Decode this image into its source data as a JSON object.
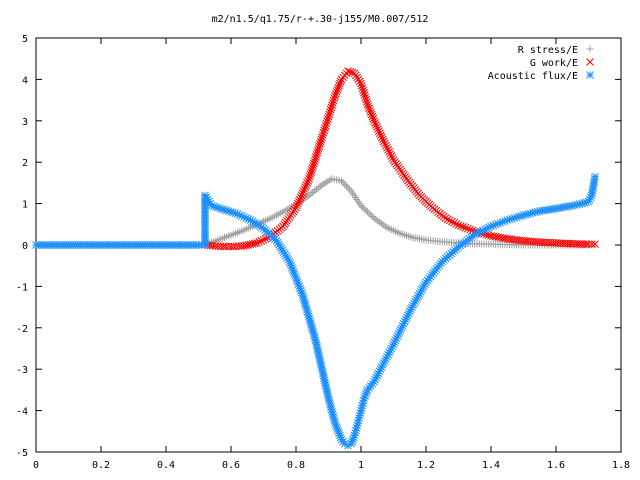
{
  "chart_data": {
    "type": "scatter",
    "title": "m2/n1.5/q1.75/r-+.30-j155/M0.007/512",
    "xlabel": "",
    "ylabel": "",
    "xlim": [
      0,
      1.8
    ],
    "ylim": [
      -5,
      5
    ],
    "xticks": [
      "0",
      "0.2",
      "0.4",
      "0.6",
      "0.8",
      "1",
      "1.2",
      "1.4",
      "1.6",
      "1.8"
    ],
    "yticks": [
      "5",
      "4",
      "3",
      "2",
      "1",
      "0",
      "-1",
      "-2",
      "-3",
      "-4",
      "-5"
    ],
    "legend_position": "top-right",
    "grid": false,
    "series": [
      {
        "name": "R stress/E",
        "marker": "plus",
        "color": "#a0a0a0",
        "x": [
          0.52,
          0.56,
          0.6,
          0.64,
          0.68,
          0.72,
          0.76,
          0.8,
          0.84,
          0.88,
          0.91,
          0.94,
          0.97,
          1.0,
          1.04,
          1.08,
          1.12,
          1.16,
          1.2,
          1.25,
          1.3,
          1.35,
          1.4,
          1.45,
          1.5,
          1.55,
          1.6,
          1.65,
          1.7,
          1.72
        ],
        "y": [
          0.0,
          0.12,
          0.24,
          0.36,
          0.5,
          0.64,
          0.8,
          0.98,
          1.2,
          1.45,
          1.6,
          1.55,
          1.3,
          0.95,
          0.65,
          0.42,
          0.28,
          0.18,
          0.12,
          0.08,
          0.05,
          0.03,
          0.02,
          0.01,
          0.0,
          0.0,
          0.0,
          0.0,
          0.0,
          0.0
        ]
      },
      {
        "name": "G work/E",
        "marker": "cross",
        "color": "#ff0000",
        "x": [
          0.52,
          0.56,
          0.6,
          0.64,
          0.68,
          0.72,
          0.76,
          0.8,
          0.84,
          0.88,
          0.9,
          0.92,
          0.94,
          0.96,
          0.98,
          1.0,
          1.02,
          1.04,
          1.07,
          1.1,
          1.14,
          1.18,
          1.22,
          1.26,
          1.3,
          1.35,
          1.4,
          1.45,
          1.5,
          1.55,
          1.6,
          1.65,
          1.7,
          1.72
        ],
        "y": [
          0.0,
          -0.03,
          -0.04,
          -0.02,
          0.05,
          0.2,
          0.45,
          0.9,
          1.6,
          2.6,
          3.1,
          3.6,
          4.0,
          4.2,
          4.15,
          3.9,
          3.4,
          3.0,
          2.5,
          2.05,
          1.6,
          1.2,
          0.9,
          0.65,
          0.48,
          0.33,
          0.22,
          0.15,
          0.1,
          0.07,
          0.05,
          0.03,
          0.02,
          0.02
        ]
      },
      {
        "name": "Acoustic flux/E",
        "marker": "star",
        "color": "#1e90ff",
        "x": [
          0.0,
          0.05,
          0.1,
          0.15,
          0.2,
          0.25,
          0.3,
          0.35,
          0.4,
          0.45,
          0.5,
          0.52,
          0.52,
          0.54,
          0.58,
          0.62,
          0.66,
          0.7,
          0.74,
          0.78,
          0.82,
          0.86,
          0.88,
          0.9,
          0.92,
          0.94,
          0.95,
          0.96,
          0.97,
          0.98,
          0.99,
          1.0,
          1.01,
          1.02,
          1.03,
          1.04,
          1.06,
          1.1,
          1.15,
          1.2,
          1.25,
          1.3,
          1.35,
          1.4,
          1.45,
          1.5,
          1.55,
          1.6,
          1.65,
          1.68,
          1.7,
          1.71,
          1.72
        ],
        "y": [
          0.0,
          0.0,
          0.0,
          0.0,
          0.0,
          0.0,
          0.0,
          0.0,
          0.0,
          0.0,
          0.0,
          0.0,
          1.2,
          0.95,
          0.85,
          0.75,
          0.6,
          0.4,
          0.1,
          -0.4,
          -1.2,
          -2.3,
          -3.0,
          -3.7,
          -4.3,
          -4.7,
          -4.8,
          -4.85,
          -4.8,
          -4.6,
          -4.3,
          -4.0,
          -3.7,
          -3.5,
          -3.4,
          -3.3,
          -3.0,
          -2.4,
          -1.6,
          -0.9,
          -0.4,
          -0.05,
          0.25,
          0.45,
          0.6,
          0.72,
          0.82,
          0.88,
          0.95,
          1.0,
          1.05,
          1.2,
          1.65
        ]
      }
    ]
  }
}
